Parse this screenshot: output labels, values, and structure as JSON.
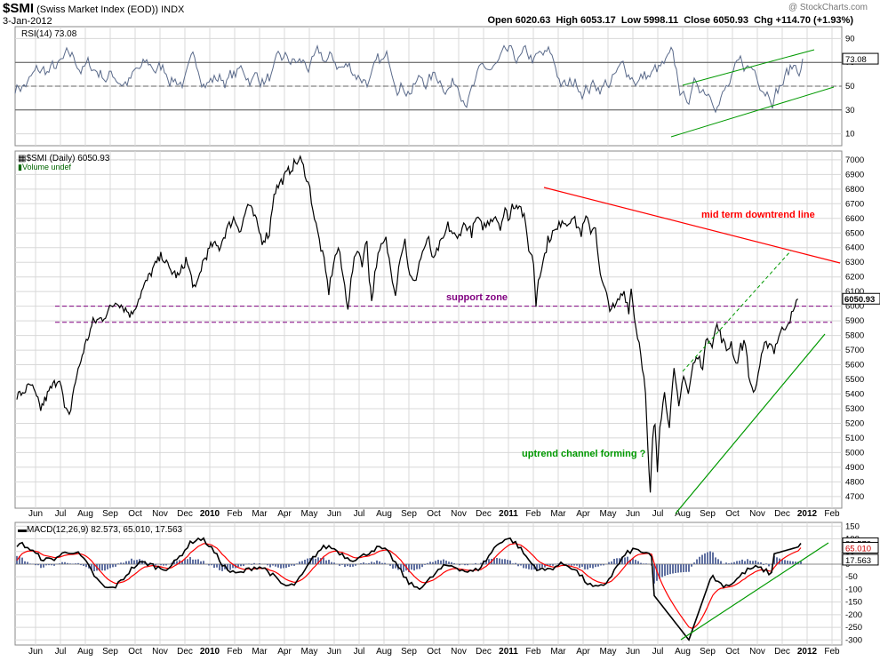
{
  "header": {
    "symbol": "$SMI",
    "name": "(Swiss Market Index (EOD))",
    "exchange": "INDX",
    "date": "3-Jan-2012",
    "quote": "Open 6020.63  High 6053.17  Low 5998.11  Close 6050.93  Chg +114.70 (+1.93%)",
    "watermark": "@ StockCharts.com"
  },
  "colors": {
    "price": "#000000",
    "rsi": "#5a6a8a",
    "rsi_fill": "#8fa8a0",
    "downtrend": "#ff0000",
    "uptrend": "#009900",
    "support": "#800080",
    "macd_signal": "#ff0000",
    "histogram": "#6070a0",
    "grid": "#d8d8d8"
  },
  "chart_data": [
    {
      "type": "line",
      "panel": "rsi",
      "title": "RSI(14) 73.08",
      "ylim": [
        0,
        100
      ],
      "yticks": [
        "90",
        "70",
        "50",
        "30",
        "10"
      ],
      "overbought": 70,
      "oversold": 30,
      "last_value_label": "73.08",
      "last_value": 73.08
    },
    {
      "type": "line",
      "panel": "price",
      "title": "$SMI (Daily) 6050.93",
      "subtitle": "Volume undef",
      "ylim": [
        4620,
        7060
      ],
      "yticks": [
        "7000",
        "6900",
        "6800",
        "6700",
        "6600",
        "6500",
        "6400",
        "6300",
        "6200",
        "6100",
        "6000",
        "5900",
        "5800",
        "5700",
        "5600",
        "5500",
        "5400",
        "5300",
        "5200",
        "5100",
        "5000",
        "4900",
        "4800",
        "4700"
      ],
      "last_value_label": "6050.93",
      "last_value": 6050.93,
      "support_zone": [
        6000,
        5890
      ],
      "annotations": {
        "downtrend": "mid term downtrend line",
        "support": "support zone",
        "uptrend": "uptrend channel forming ?"
      },
      "price_path": [
        [
          0,
          5380
        ],
        [
          6,
          5460
        ],
        [
          10,
          5300
        ],
        [
          14,
          5430
        ],
        [
          18,
          5520
        ],
        [
          20,
          5300
        ],
        [
          22,
          5240
        ],
        [
          24,
          5450
        ],
        [
          28,
          5700
        ],
        [
          32,
          5890
        ],
        [
          36,
          5920
        ],
        [
          42,
          6040
        ],
        [
          48,
          5940
        ],
        [
          53,
          6120
        ],
        [
          57,
          6250
        ],
        [
          61,
          6350
        ],
        [
          64,
          6250
        ],
        [
          68,
          6200
        ],
        [
          71,
          6320
        ],
        [
          75,
          6100
        ],
        [
          78,
          6300
        ],
        [
          82,
          6420
        ],
        [
          85,
          6400
        ],
        [
          88,
          6520
        ],
        [
          91,
          6600
        ],
        [
          94,
          6520
        ],
        [
          97,
          6700
        ],
        [
          100,
          6600
        ],
        [
          103,
          6450
        ],
        [
          106,
          6500
        ],
        [
          108,
          6780
        ],
        [
          111,
          6850
        ],
        [
          114,
          6920
        ],
        [
          117,
          6980
        ],
        [
          119,
          7000
        ],
        [
          121,
          6920
        ],
        [
          123,
          6800
        ],
        [
          125,
          6600
        ],
        [
          127,
          6450
        ],
        [
          129,
          6300
        ],
        [
          131,
          6100
        ],
        [
          133,
          6300
        ],
        [
          135,
          6400
        ],
        [
          137,
          6200
        ],
        [
          139,
          6000
        ],
        [
          141,
          6250
        ],
        [
          143,
          6400
        ],
        [
          145,
          6300
        ],
        [
          147,
          6450
        ],
        [
          148,
          6200
        ],
        [
          149,
          6040
        ],
        [
          151,
          6300
        ],
        [
          153,
          6400
        ],
        [
          155,
          6450
        ],
        [
          157,
          6250
        ],
        [
          159,
          6100
        ],
        [
          161,
          6350
        ],
        [
          163,
          6450
        ],
        [
          165,
          6200
        ],
        [
          167,
          6150
        ],
        [
          169,
          6300
        ],
        [
          171,
          6400
        ],
        [
          173,
          6450
        ],
        [
          175,
          6300
        ],
        [
          177,
          6400
        ],
        [
          179,
          6450
        ],
        [
          181,
          6550
        ],
        [
          183,
          6500
        ],
        [
          185,
          6450
        ],
        [
          187,
          6550
        ],
        [
          189,
          6550
        ],
        [
          191,
          6500
        ],
        [
          193,
          6600
        ],
        [
          195,
          6550
        ],
        [
          197,
          6550
        ],
        [
          199,
          6600
        ],
        [
          201,
          6620
        ],
        [
          203,
          6550
        ],
        [
          205,
          6650
        ],
        [
          207,
          6600
        ],
        [
          208,
          6690
        ],
        [
          211,
          6700
        ],
        [
          213,
          6600
        ],
        [
          215,
          6400
        ],
        [
          217,
          6300
        ],
        [
          218,
          6010
        ],
        [
          219,
          6200
        ],
        [
          221,
          6300
        ],
        [
          223,
          6450
        ],
        [
          225,
          6500
        ],
        [
          227,
          6520
        ],
        [
          229,
          6600
        ],
        [
          231,
          6560
        ],
        [
          233,
          6620
        ],
        [
          235,
          6560
        ],
        [
          237,
          6500
        ],
        [
          239,
          6600
        ],
        [
          241,
          6520
        ],
        [
          243,
          6550
        ],
        [
          245,
          6200
        ],
        [
          247,
          6100
        ],
        [
          249,
          6000
        ],
        [
          251,
          5980
        ],
        [
          253,
          6050
        ],
        [
          255,
          6100
        ],
        [
          257,
          5980
        ],
        [
          258,
          6120
        ],
        [
          260,
          5850
        ],
        [
          262,
          5700
        ],
        [
          264,
          5400
        ],
        [
          265,
          5000
        ],
        [
          266,
          4710
        ],
        [
          267,
          5100
        ],
        [
          268,
          5200
        ],
        [
          269,
          4900
        ],
        [
          270,
          5200
        ],
        [
          272,
          5400
        ],
        [
          274,
          5200
        ],
        [
          276,
          5550
        ],
        [
          278,
          5300
        ],
        [
          280,
          5550
        ],
        [
          282,
          5400
        ],
        [
          284,
          5600
        ],
        [
          286,
          5650
        ],
        [
          288,
          5600
        ],
        [
          290,
          5800
        ],
        [
          292,
          5750
        ],
        [
          294,
          5870
        ],
        [
          296,
          5780
        ],
        [
          298,
          5700
        ],
        [
          300,
          5750
        ],
        [
          302,
          5600
        ],
        [
          304,
          5720
        ],
        [
          306,
          5750
        ],
        [
          308,
          5450
        ],
        [
          310,
          5420
        ],
        [
          312,
          5600
        ],
        [
          314,
          5720
        ],
        [
          316,
          5760
        ],
        [
          318,
          5700
        ],
        [
          320,
          5800
        ],
        [
          322,
          5850
        ],
        [
          324,
          5900
        ],
        [
          326,
          5950
        ],
        [
          328,
          6050
        ]
      ],
      "x_index_range": [
        0,
        330
      ]
    },
    {
      "type": "line",
      "panel": "macd",
      "title": "MACD(12,26,9) 82.573, 65.010, 17.563",
      "macd": 82.573,
      "signal": 65.01,
      "histogram": 17.563,
      "ylim": [
        -320,
        165
      ],
      "yticks": [
        "150",
        "100",
        "50",
        "0",
        "-50",
        "-100",
        "-150",
        "-200",
        "-250",
        "-300"
      ],
      "macd_label": "82.573",
      "signal_label": "65.010",
      "hist_label": "17.563"
    }
  ],
  "x_axis": {
    "labels": [
      "Jun",
      "Jul",
      "Aug",
      "Sep",
      "Oct",
      "Nov",
      "Dec",
      "2010",
      "Feb",
      "Mar",
      "Apr",
      "May",
      "Jun",
      "Jul",
      "Aug",
      "Sep",
      "Oct",
      "Nov",
      "Dec",
      "2011",
      "Feb",
      "Mar",
      "Apr",
      "May",
      "Jun",
      "Jul",
      "Aug",
      "Sep",
      "Oct",
      "Nov",
      "Dec",
      "2012",
      "Feb"
    ],
    "bold": [
      "2010",
      "2011",
      "2012"
    ]
  }
}
